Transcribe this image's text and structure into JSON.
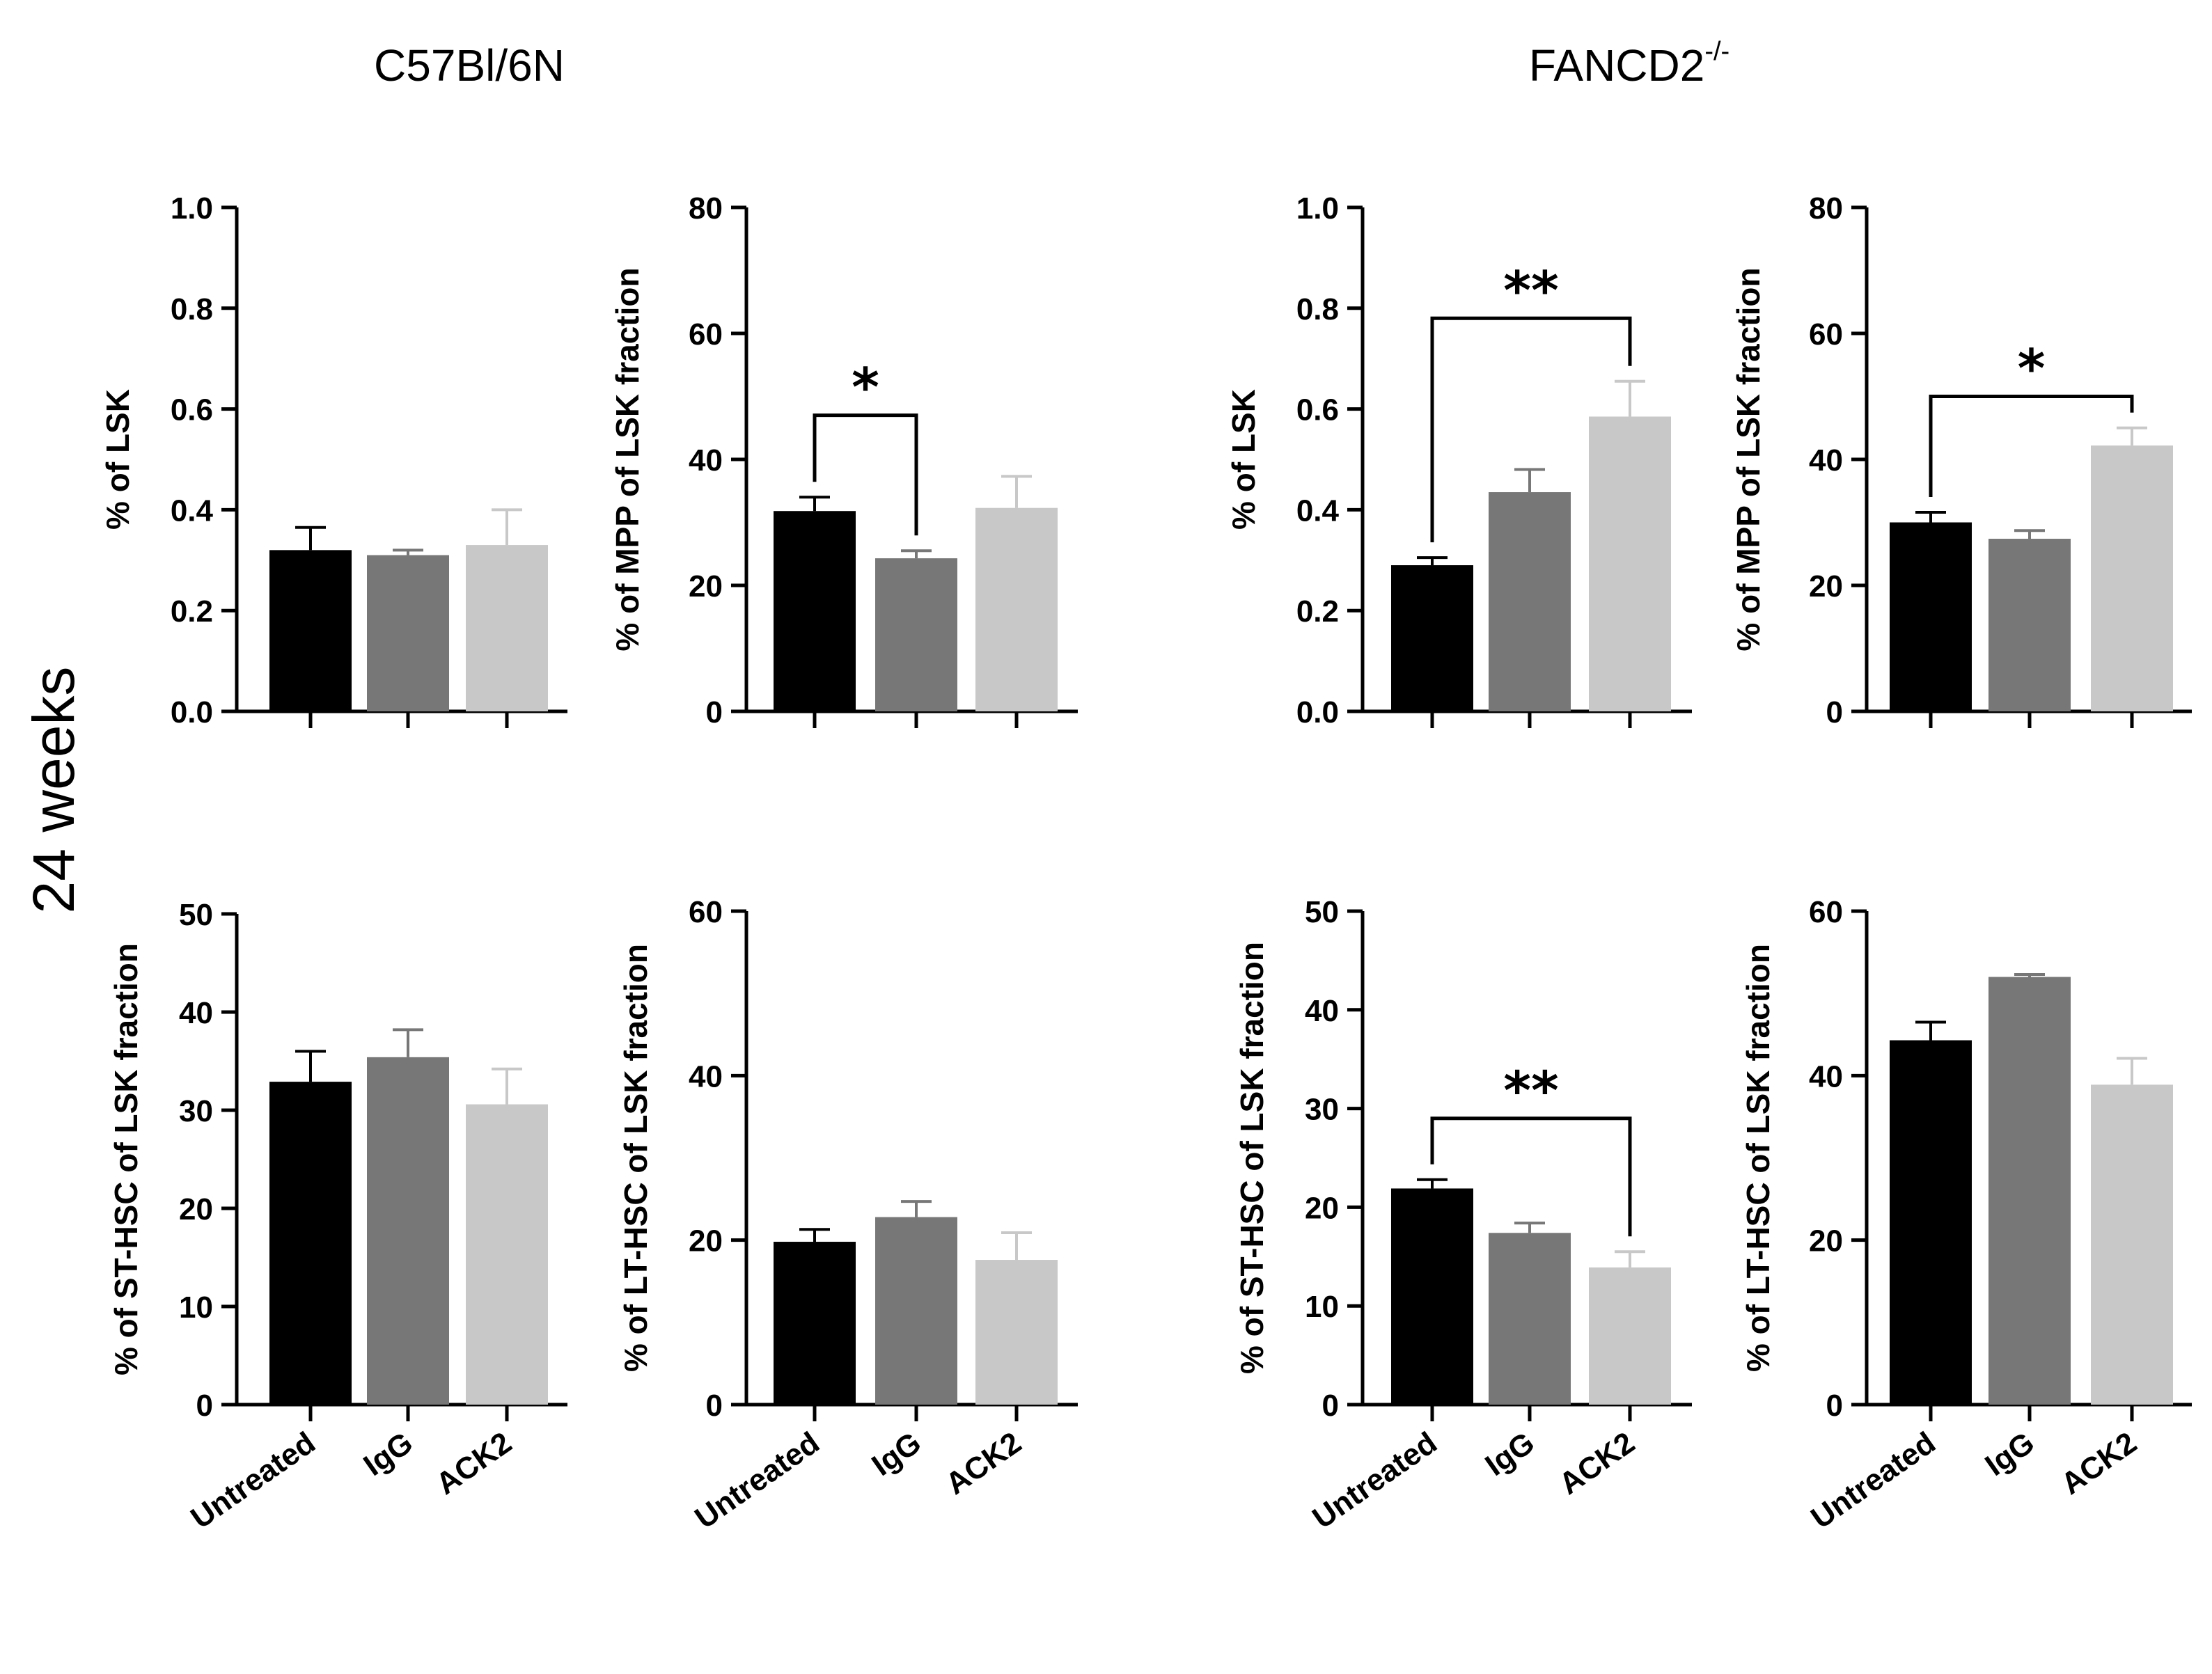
{
  "figure": {
    "left_title": "C57Bl/6N",
    "right_title_main": "FANCD2",
    "right_title_sup": "-/-",
    "side_label": "24 weeks",
    "categories": [
      "Untreated",
      "IgG",
      "ACK2"
    ],
    "colors": {
      "Untreated": "#000000",
      "IgG": "#777777",
      "ACK2": "#c8c8c8"
    }
  },
  "chart_data": [
    {
      "id": "wt-lsk",
      "type": "bar",
      "group": "C57Bl/6N",
      "title": "",
      "xlabel": "",
      "ylabel": "% of LSK",
      "ylim": [
        0,
        1.0
      ],
      "yticks": [
        "0.0",
        "0.2",
        "0.4",
        "0.6",
        "0.8",
        "1.0"
      ],
      "categories": [
        "Untreated",
        "IgG",
        "ACK2"
      ],
      "values": [
        0.32,
        0.31,
        0.33
      ],
      "errors": [
        0.045,
        0.01,
        0.07
      ],
      "significance": []
    },
    {
      "id": "wt-mpp",
      "type": "bar",
      "group": "C57Bl/6N",
      "title": "",
      "xlabel": "",
      "ylabel": "% of MPP of LSK fraction",
      "ylim": [
        0,
        80
      ],
      "yticks": [
        "0",
        "20",
        "40",
        "60",
        "80"
      ],
      "categories": [
        "Untreated",
        "IgG",
        "ACK2"
      ],
      "values": [
        31.8,
        24.3,
        32.3
      ],
      "errors": [
        2.2,
        1.2,
        5.0
      ],
      "significance": [
        {
          "from": 0,
          "to": 1,
          "label": "*",
          "y": 47
        }
      ]
    },
    {
      "id": "fancd2-lsk",
      "type": "bar",
      "group": "FANCD2-/-",
      "title": "",
      "xlabel": "",
      "ylabel": "% of LSK",
      "ylim": [
        0,
        1.0
      ],
      "yticks": [
        "0.0",
        "0.2",
        "0.4",
        "0.6",
        "0.8",
        "1.0"
      ],
      "categories": [
        "Untreated",
        "IgG",
        "ACK2"
      ],
      "values": [
        0.29,
        0.435,
        0.585
      ],
      "errors": [
        0.015,
        0.045,
        0.07
      ],
      "significance": [
        {
          "from": 0,
          "to": 2,
          "label": "**",
          "y": 0.78
        }
      ]
    },
    {
      "id": "fancd2-mpp",
      "type": "bar",
      "group": "FANCD2-/-",
      "title": "",
      "xlabel": "",
      "ylabel": "% of MPP of LSK fraction",
      "ylim": [
        0,
        80
      ],
      "yticks": [
        "0",
        "20",
        "40",
        "60",
        "80"
      ],
      "categories": [
        "Untreated",
        "IgG",
        "ACK2"
      ],
      "values": [
        30.0,
        27.4,
        42.2
      ],
      "errors": [
        1.6,
        1.3,
        2.8
      ],
      "significance": [
        {
          "from": 0,
          "to": 2,
          "label": "*",
          "y": 50
        }
      ]
    },
    {
      "id": "wt-sthsc",
      "type": "bar",
      "group": "C57Bl/6N",
      "title": "",
      "xlabel": "",
      "ylabel": "% of ST-HSC of LSK fraction",
      "ylim": [
        0,
        50
      ],
      "yticks": [
        "0",
        "10",
        "20",
        "30",
        "40",
        "50"
      ],
      "categories": [
        "Untreated",
        "IgG",
        "ACK2"
      ],
      "values": [
        32.9,
        35.4,
        30.6
      ],
      "errors": [
        3.1,
        2.8,
        3.6
      ],
      "significance": []
    },
    {
      "id": "wt-lthsc",
      "type": "bar",
      "group": "C57Bl/6N",
      "title": "",
      "xlabel": "",
      "ylabel": "% of LT-HSC of LSK fraction",
      "ylim": [
        0,
        60
      ],
      "yticks": [
        "0",
        "20",
        "40",
        "60"
      ],
      "categories": [
        "Untreated",
        "IgG",
        "ACK2"
      ],
      "values": [
        19.8,
        22.8,
        17.6
      ],
      "errors": [
        1.5,
        1.9,
        3.3
      ],
      "significance": []
    },
    {
      "id": "fancd2-sthsc",
      "type": "bar",
      "group": "FANCD2-/-",
      "title": "",
      "xlabel": "",
      "ylabel": "% of ST-HSC of LSK fraction",
      "ylim": [
        0,
        50
      ],
      "yticks": [
        "0",
        "10",
        "20",
        "30",
        "40",
        "50"
      ],
      "categories": [
        "Untreated",
        "IgG",
        "ACK2"
      ],
      "values": [
        21.9,
        17.4,
        13.9
      ],
      "errors": [
        0.9,
        1.0,
        1.6
      ],
      "significance": [
        {
          "from": 0,
          "to": 2,
          "label": "**",
          "y": 29
        }
      ]
    },
    {
      "id": "fancd2-lthsc",
      "type": "bar",
      "group": "FANCD2-/-",
      "title": "",
      "xlabel": "",
      "ylabel": "% of LT-HSC of LSK fraction",
      "ylim": [
        0,
        60
      ],
      "yticks": [
        "0",
        "20",
        "40",
        "60"
      ],
      "categories": [
        "Untreated",
        "IgG",
        "ACK2"
      ],
      "values": [
        44.3,
        52.0,
        38.9
      ],
      "errors": [
        2.2,
        0.3,
        3.2
      ],
      "significance": []
    }
  ]
}
